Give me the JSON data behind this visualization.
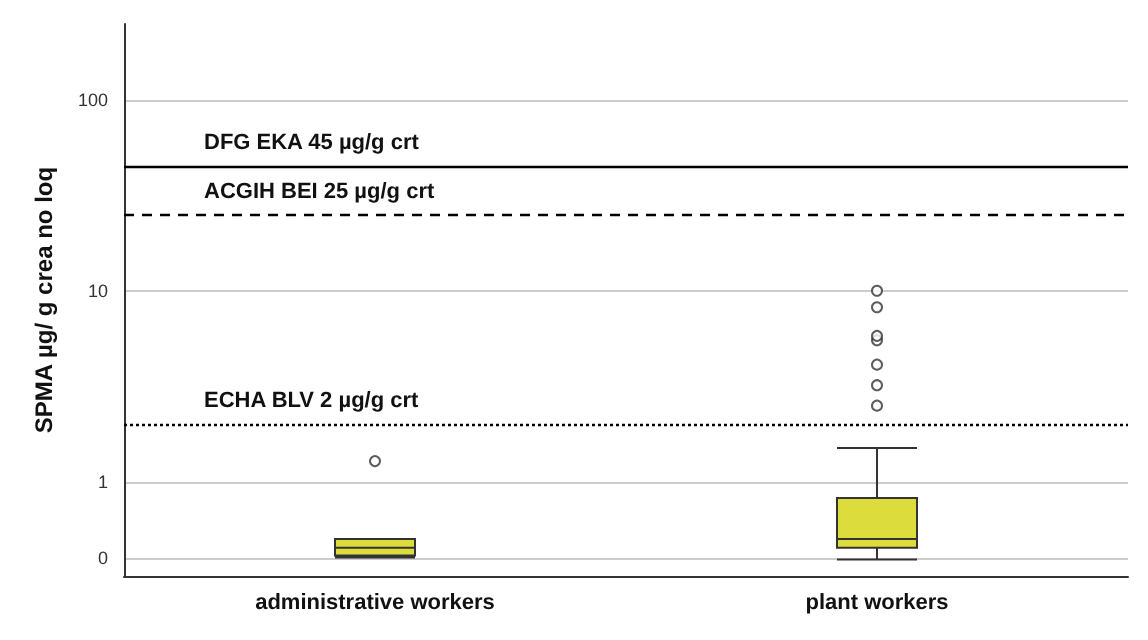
{
  "chart_data": {
    "type": "box",
    "ylabel": "SPMA µg/ g crea no loq",
    "categories": [
      "administrative workers",
      "plant workers"
    ],
    "series": [
      {
        "color": "#dcdc3c",
        "boxes": [
          {
            "low": 0.4,
            "q1": 0.41,
            "median": 0.45,
            "q3": 0.5,
            "high": 0.5,
            "outliers": [
              1.28
            ]
          },
          {
            "low": 0.39,
            "q1": 0.45,
            "median": 0.5,
            "q3": 0.82,
            "high": 1.5,
            "outliers": [
              2.5,
              3.2,
              4.1,
              5.5,
              5.8,
              8.2,
              10
            ]
          }
        ]
      }
    ],
    "log": true,
    "ylim": [
      0.32,
      250
    ],
    "yticks": [
      {
        "value": 0.4,
        "label": "0"
      },
      1,
      10,
      100
    ],
    "grid": "y",
    "ref_lines": [
      {
        "axis": "y",
        "value": 45,
        "label": "DFG EKA 45 µg/g crt",
        "color": "#000000",
        "line_style": "solid"
      },
      {
        "axis": "y",
        "value": 25,
        "label": "ACGIH BEI 25 µg/g crt",
        "color": "#000000",
        "line_style": "dashed"
      },
      {
        "axis": "y",
        "value": 2,
        "label": "ECHA BLV 2 µg/g crt",
        "color": "#000000",
        "line_style": "dotted"
      }
    ]
  }
}
